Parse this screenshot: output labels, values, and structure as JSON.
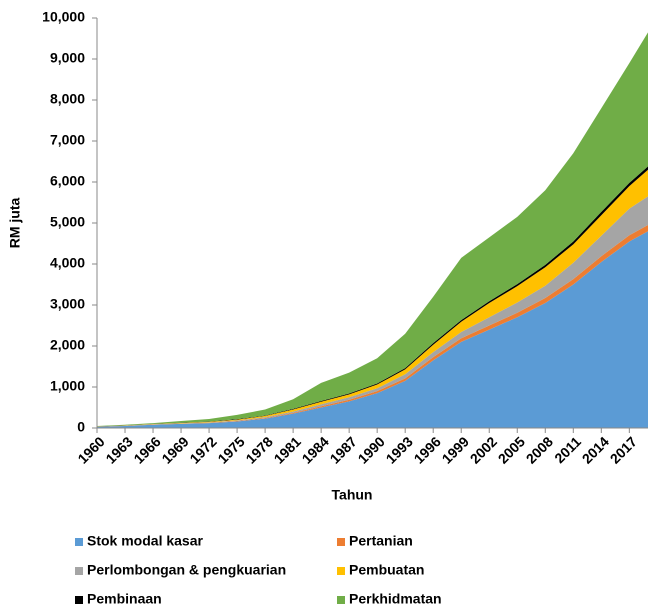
{
  "chart_data": {
    "type": "stacked-area",
    "x_label": "Tahun",
    "y_label": "RM juta",
    "x": [
      1960,
      1963,
      1966,
      1969,
      1972,
      1975,
      1978,
      1981,
      1984,
      1987,
      1990,
      1993,
      1996,
      1999,
      2002,
      2005,
      2008,
      2011,
      2014,
      2017,
      2019
    ],
    "xlim": [
      1960,
      2019
    ],
    "xticks": [
      1960,
      1963,
      1966,
      1969,
      1972,
      1975,
      1978,
      1981,
      1984,
      1987,
      1990,
      1993,
      1996,
      1999,
      2002,
      2005,
      2008,
      2011,
      2014,
      2017
    ],
    "ylim": [
      0,
      10000
    ],
    "yticks": [
      0,
      {
        "value": 1000,
        "label": "1,000"
      },
      {
        "value": 2000,
        "label": "2,000"
      },
      {
        "value": 3000,
        "label": "3,000"
      },
      {
        "value": 4000,
        "label": "4,000"
      },
      {
        "value": 5000,
        "label": "5,000"
      },
      {
        "value": 6000,
        "label": "6,000"
      },
      {
        "value": 7000,
        "label": "7,000"
      },
      {
        "value": 8000,
        "label": "8,000"
      },
      {
        "value": 9000,
        "label": "9,000"
      },
      {
        "value": 10000,
        "label": "10,000"
      }
    ],
    "series": [
      {
        "name": "Stok modal kasar",
        "color": "#5b9bd5",
        "values": [
          30,
          50,
          80,
          100,
          120,
          160,
          230,
          350,
          500,
          650,
          850,
          1150,
          1650,
          2100,
          2400,
          2700,
          3050,
          3500,
          4050,
          4550,
          4800
        ]
      },
      {
        "name": "Pertanian",
        "color": "#ed7d31",
        "values": [
          3,
          4,
          5,
          6,
          8,
          10,
          15,
          20,
          30,
          40,
          50,
          60,
          80,
          90,
          100,
          110,
          120,
          130,
          140,
          150,
          150
        ]
      },
      {
        "name": "Perlombongan & pengkuarian",
        "color": "#a5a5a5",
        "values": [
          2,
          3,
          5,
          7,
          10,
          15,
          20,
          30,
          50,
          60,
          70,
          100,
          120,
          150,
          200,
          250,
          300,
          400,
          500,
          650,
          700
        ]
      },
      {
        "name": "Pembuatan",
        "color": "#ffc000",
        "values": [
          3,
          5,
          7,
          10,
          15,
          20,
          30,
          50,
          60,
          70,
          90,
          120,
          180,
          250,
          350,
          400,
          450,
          450,
          500,
          550,
          650
        ]
      },
      {
        "name": "Pembinaan",
        "color": "#000000",
        "values": [
          2,
          3,
          5,
          5,
          5,
          10,
          10,
          15,
          20,
          20,
          25,
          30,
          40,
          40,
          40,
          50,
          60,
          70,
          80,
          80,
          80
        ]
      },
      {
        "name": "Perkhidmatan",
        "color": "#70ad47",
        "values": [
          10,
          15,
          18,
          42,
          62,
          105,
          145,
          235,
          440,
          510,
          615,
          840,
          1130,
          1520,
          1560,
          1640,
          1820,
          2150,
          2530,
          2920,
          3270
        ]
      }
    ]
  }
}
